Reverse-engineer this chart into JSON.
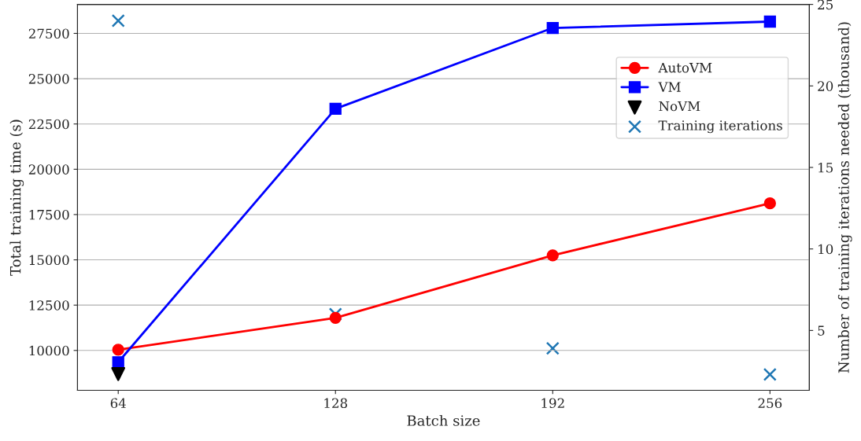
{
  "chart_data": {
    "type": "line",
    "xlabel": "Batch size",
    "ylabel": "Total training time (s)",
    "y2label": "Number of training iterations needed (thousand)",
    "x": [
      64,
      128,
      192,
      256
    ],
    "xlim": [
      52,
      267.6
    ],
    "xticks": [
      64,
      128,
      192,
      256
    ],
    "ylim": [
      7800,
      29100
    ],
    "yticks": [
      10000,
      12500,
      15000,
      17500,
      20000,
      22500,
      25000,
      27500
    ],
    "y2lim": [
      1.33,
      25
    ],
    "y2ticks": [
      5,
      10,
      15,
      20,
      25
    ],
    "grid": "y",
    "legend": "top right",
    "series": [
      {
        "name": "AutoVM",
        "marker": "circle",
        "color": "#ff0000",
        "values": [
          10040,
          11800,
          15250,
          18120
        ]
      },
      {
        "name": "VM",
        "marker": "square",
        "color": "#0000ff",
        "values": [
          9350,
          23340,
          27800,
          28150
        ]
      },
      {
        "name": "NoVM",
        "type": "scatter",
        "marker": "triangle",
        "color": "#000000",
        "values": [
          8700,
          null,
          null,
          null
        ]
      },
      {
        "name": "Training iterations",
        "type": "scatter",
        "marker": "cross",
        "color": "#1f77b4",
        "axis": "y2",
        "values": [
          24,
          6,
          3.9,
          2.3
        ]
      }
    ]
  }
}
